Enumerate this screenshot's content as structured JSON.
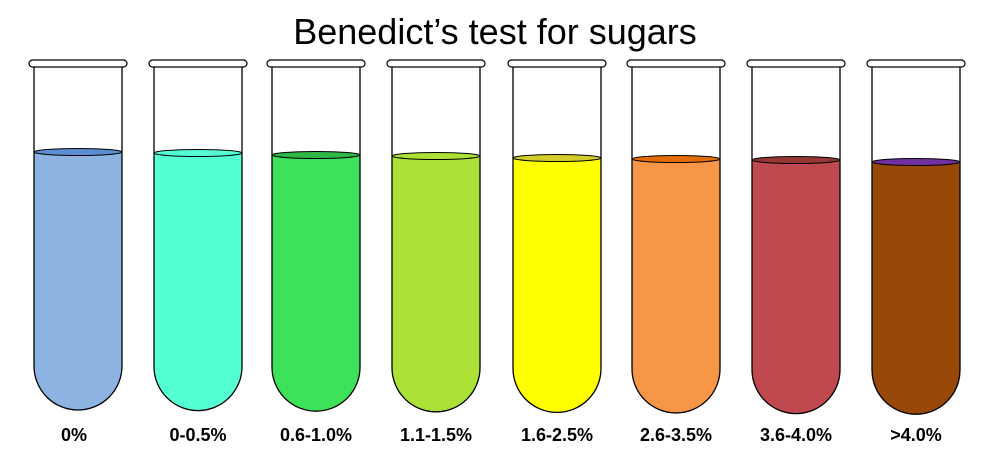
{
  "title": "Benedict’s test for sugars",
  "tubes": [
    {
      "label": "0%",
      "liquid_color": "#8db3e2",
      "surface_color": "#5b8fd1"
    },
    {
      "label": "0-0.5%",
      "liquid_color": "#55ffd4",
      "surface_color": "#55ffd4"
    },
    {
      "label": "0.6-1.0%",
      "liquid_color": "#3ee25a",
      "surface_color": "#2fb845"
    },
    {
      "label": "1.1-1.5%",
      "liquid_color": "#ace237",
      "surface_color": "#ace237"
    },
    {
      "label": "1.6-2.5%",
      "liquid_color": "#ffff00",
      "surface_color": "#d4cc2a"
    },
    {
      "label": "2.6-3.5%",
      "liquid_color": "#f79647",
      "surface_color": "#e36c0a"
    },
    {
      "label": "3.6-4.0%",
      "liquid_color": "#c0494f",
      "surface_color": "#953735"
    },
    {
      "label": ">4.0%",
      "liquid_color": "#974806",
      "surface_color": "#7030a0"
    }
  ]
}
